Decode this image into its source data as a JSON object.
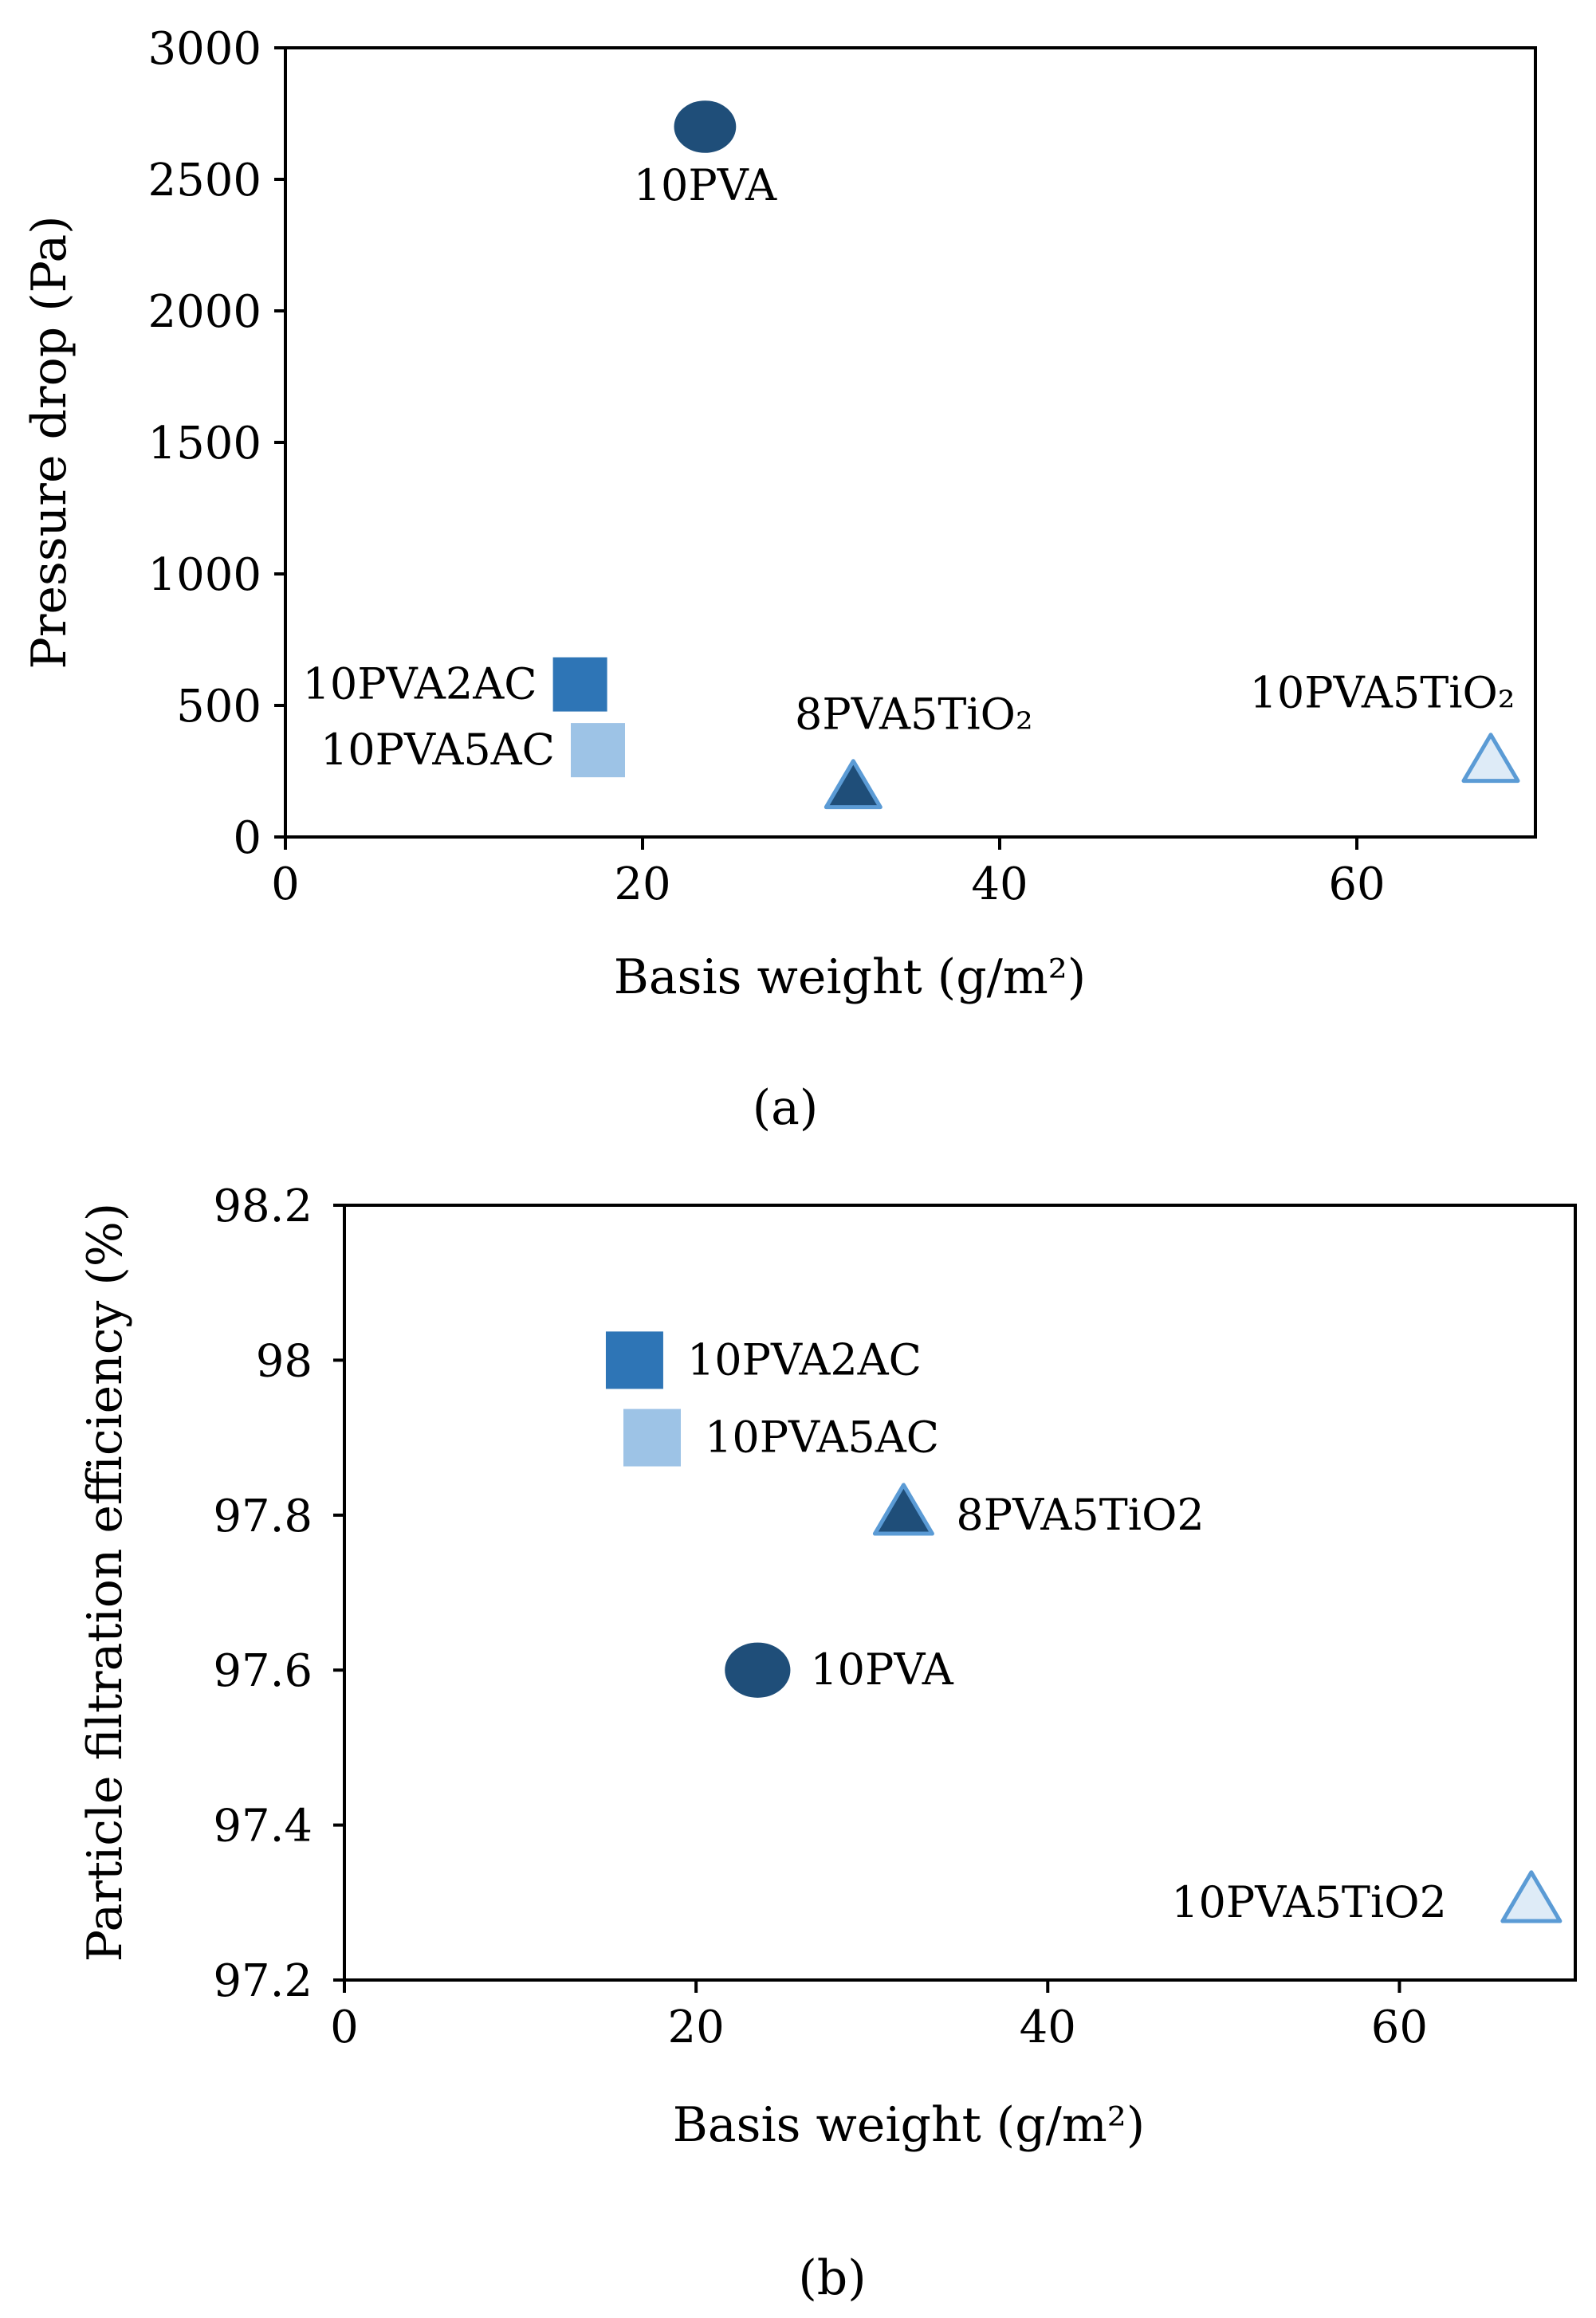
{
  "colors": {
    "navy": "#1f4e79",
    "blue": "#2e75b6",
    "light_blue": "#9dc3e6",
    "pale_blue": "#deebf7",
    "outline_blue": "#5b9bd5"
  },
  "chart_data": [
    {
      "id": "a",
      "type": "scatter",
      "caption": "(a)",
      "xlabel": "Basis weight (g/m²)",
      "ylabel": "Pressure drop (Pa)",
      "xlim": [
        0,
        70
      ],
      "ylim": [
        0,
        3000
      ],
      "xticks": [
        0,
        20,
        40,
        60
      ],
      "yticks": [
        0,
        500,
        1000,
        1500,
        2000,
        2500,
        3000
      ],
      "points": [
        {
          "name": "10PVA",
          "x": 23.5,
          "y": 2700,
          "marker": "circle",
          "color": "navy",
          "label_pos": "below"
        },
        {
          "name": "10PVA2AC",
          "x": 16.5,
          "y": 580,
          "marker": "square",
          "color": "blue",
          "label_pos": "left"
        },
        {
          "name": "10PVA5AC",
          "x": 17.5,
          "y": 330,
          "marker": "square",
          "color": "light_blue",
          "label_pos": "left"
        },
        {
          "name": "8PVA5TiO₂",
          "x": 31.8,
          "y": 180,
          "marker": "triangle",
          "color": "navy",
          "label_pos": "above"
        },
        {
          "name": "10PVA5TiO₂",
          "x": 67.5,
          "y": 280,
          "marker": "triangle",
          "color": "pale_blue",
          "label_pos": "above-left"
        }
      ]
    },
    {
      "id": "b",
      "type": "scatter",
      "caption": "(b)",
      "xlabel": "Basis weight (g/m²)",
      "ylabel": "Particle filtration efficiency (%)",
      "xlim": [
        0,
        70
      ],
      "ylim": [
        97.2,
        98.2
      ],
      "xticks": [
        0,
        20,
        40,
        60
      ],
      "yticks": [
        "97.2",
        "97.4",
        "97.6",
        "97.8",
        "98",
        "98.2"
      ],
      "points": [
        {
          "name": "10PVA2AC",
          "x": 16.5,
          "y": 98.0,
          "marker": "square",
          "color": "blue",
          "label_pos": "right"
        },
        {
          "name": "10PVA5AC",
          "x": 17.5,
          "y": 97.9,
          "marker": "square",
          "color": "light_blue",
          "label_pos": "right"
        },
        {
          "name": "8PVA5TiO2",
          "x": 31.8,
          "y": 97.8,
          "marker": "triangle",
          "color": "navy",
          "label_pos": "right"
        },
        {
          "name": "10PVA",
          "x": 23.5,
          "y": 97.6,
          "marker": "circle",
          "color": "navy",
          "label_pos": "right"
        },
        {
          "name": "10PVA5TiO2",
          "x": 67.5,
          "y": 97.3,
          "marker": "triangle",
          "color": "pale_blue",
          "label_pos": "left"
        }
      ]
    }
  ]
}
